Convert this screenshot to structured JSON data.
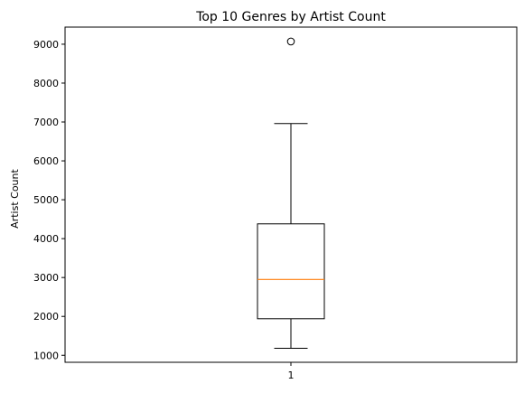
{
  "chart_data": {
    "type": "box",
    "title": "Top 10 Genres by Artist Count",
    "xlabel": "",
    "ylabel": "Artist Count",
    "categories": [
      "1"
    ],
    "ylim": [
      820,
      9440
    ],
    "yticks": [
      1000,
      2000,
      3000,
      4000,
      5000,
      6000,
      7000,
      8000,
      9000
    ],
    "boxes": [
      {
        "category": "1",
        "whisker_low": 1180,
        "q1": 1940,
        "median": 2950,
        "q3": 4380,
        "whisker_high": 6960,
        "outliers": [
          9070
        ]
      }
    ],
    "grid": false,
    "colors": {
      "box": "#000000",
      "median": "#ff7f0e",
      "outlier": "#000000"
    }
  }
}
